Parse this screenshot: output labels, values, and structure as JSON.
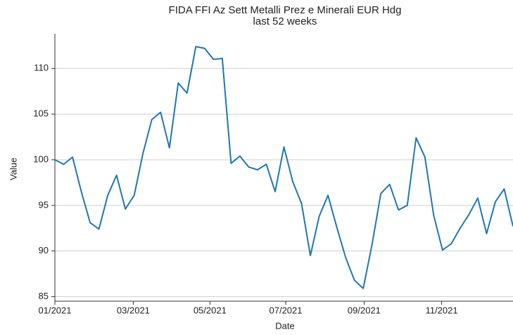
{
  "chart_data": {
    "type": "line",
    "title": "FIDA FFI Az Sett Metalli Prez e Minerali EUR Hdg",
    "subtitle": "last 52 weeks",
    "x_label": "Date",
    "y_label": "Value",
    "series": [
      {
        "color": "#1f77b4",
        "values": [
          100.0,
          99.5,
          100.3,
          96.5,
          93.1,
          92.4,
          96.1,
          98.3,
          94.6,
          96.1,
          100.7,
          104.4,
          105.2,
          101.3,
          108.4,
          107.3,
          112.4,
          112.2,
          111.0,
          111.1,
          99.6,
          100.4,
          99.2,
          98.9,
          99.5,
          96.5,
          101.4,
          97.6,
          95.2,
          89.5,
          93.8,
          96.1,
          92.6,
          89.3,
          86.8,
          85.9,
          90.7,
          96.3,
          97.3,
          94.5,
          95.0,
          102.4,
          100.3,
          93.9,
          90.1,
          90.8,
          92.5,
          94.0,
          95.8,
          91.9,
          95.4,
          96.8,
          92.7
        ]
      }
    ],
    "xlim": [
      0,
      52
    ],
    "xticks": [
      {
        "value": 0,
        "label": "01/2021"
      },
      {
        "value": 8.9,
        "label": "03/2021"
      },
      {
        "value": 17.6,
        "label": "05/2021"
      },
      {
        "value": 26.2,
        "label": "07/2021"
      },
      {
        "value": 35.1,
        "label": "09/2021"
      },
      {
        "value": 43.9,
        "label": "11/2021"
      }
    ],
    "ylim": [
      84.5,
      113.8
    ],
    "yticks": [
      85,
      90,
      95,
      100,
      105,
      110
    ],
    "grid": true
  }
}
